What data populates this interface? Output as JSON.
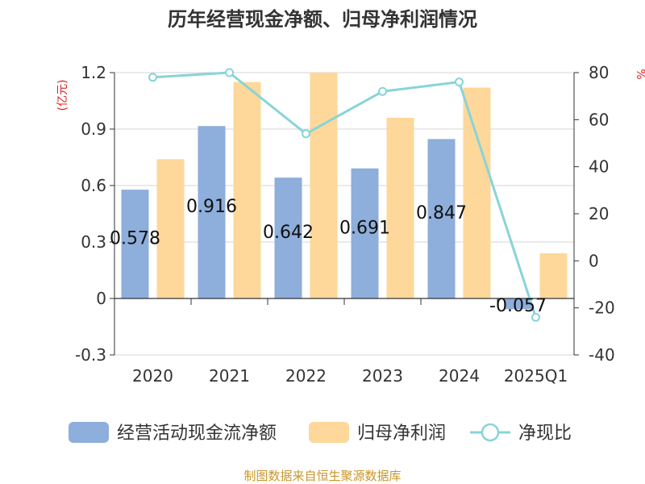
{
  "chart_data": {
    "type": "bar",
    "title": "历年经营现金净额、归母净利润情况",
    "categories": [
      "2020",
      "2021",
      "2022",
      "2023",
      "2024",
      "2025Q1"
    ],
    "series": [
      {
        "name": "经营活动现金流净额",
        "kind": "bar",
        "axis": "left",
        "color": "#8eaedb",
        "values": [
          0.578,
          0.916,
          0.642,
          0.691,
          0.847,
          -0.057
        ],
        "labels": [
          "0.578",
          "0.916",
          "0.642",
          "0.691",
          "0.847",
          "-0.057"
        ]
      },
      {
        "name": "归母净利润",
        "kind": "bar",
        "axis": "left",
        "color": "#fdd89a",
        "values": [
          0.74,
          1.15,
          1.2,
          0.96,
          1.12,
          0.24
        ]
      },
      {
        "name": "净现比",
        "kind": "line",
        "axis": "right",
        "color": "#88d4d8",
        "values": [
          78,
          80,
          54,
          72,
          76,
          -24
        ]
      }
    ],
    "y_left": {
      "label": "(亿元)",
      "min": -0.3,
      "max": 1.2,
      "ticks": [
        "-0.3",
        "0",
        "0.3",
        "0.6",
        "0.9",
        "1.2"
      ]
    },
    "y_right": {
      "label": "%",
      "min": -40,
      "max": 80,
      "ticks": [
        "-40",
        "-20",
        "0",
        "20",
        "40",
        "60",
        "80"
      ]
    },
    "grid": true,
    "legend_position": "bottom"
  },
  "footer": {
    "source": "制图数据来自恒生聚源数据库"
  }
}
